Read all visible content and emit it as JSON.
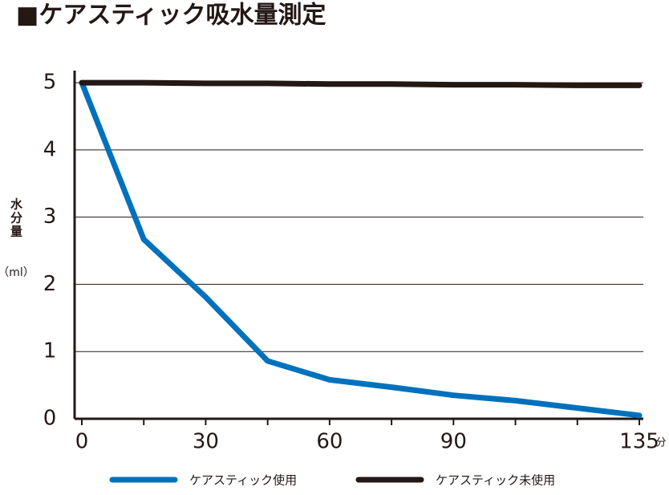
{
  "chart_data": {
    "type": "line",
    "title": "■ケアスティック吸水量測定",
    "y_label": "水分量",
    "y_unit": "（ml）",
    "x_unit": "分",
    "x": [
      0,
      15,
      30,
      45,
      60,
      75,
      90,
      105,
      120,
      135
    ],
    "series": [
      {
        "name": "ケアスティック使用",
        "color": "#0071bc",
        "values": [
          5,
          2.67,
          1.81,
          0.86,
          0.58,
          0.47,
          0.35,
          0.27,
          0.16,
          0.05
        ]
      },
      {
        "name": "ケアスティック未使用",
        "color": "#231815",
        "values": [
          5,
          5,
          4.99,
          4.99,
          4.98,
          4.98,
          4.97,
          4.97,
          4.96,
          4.96
        ]
      }
    ],
    "xlim": [
      0,
      135
    ],
    "xticks": [
      0,
      30,
      60,
      90,
      135
    ],
    "xminor_ticks": [
      15,
      45,
      75,
      105,
      120
    ],
    "ylim": [
      0,
      5.18
    ],
    "yticks": [
      0,
      1,
      2,
      3,
      4,
      5
    ],
    "grid": true,
    "legend": "bottom"
  }
}
